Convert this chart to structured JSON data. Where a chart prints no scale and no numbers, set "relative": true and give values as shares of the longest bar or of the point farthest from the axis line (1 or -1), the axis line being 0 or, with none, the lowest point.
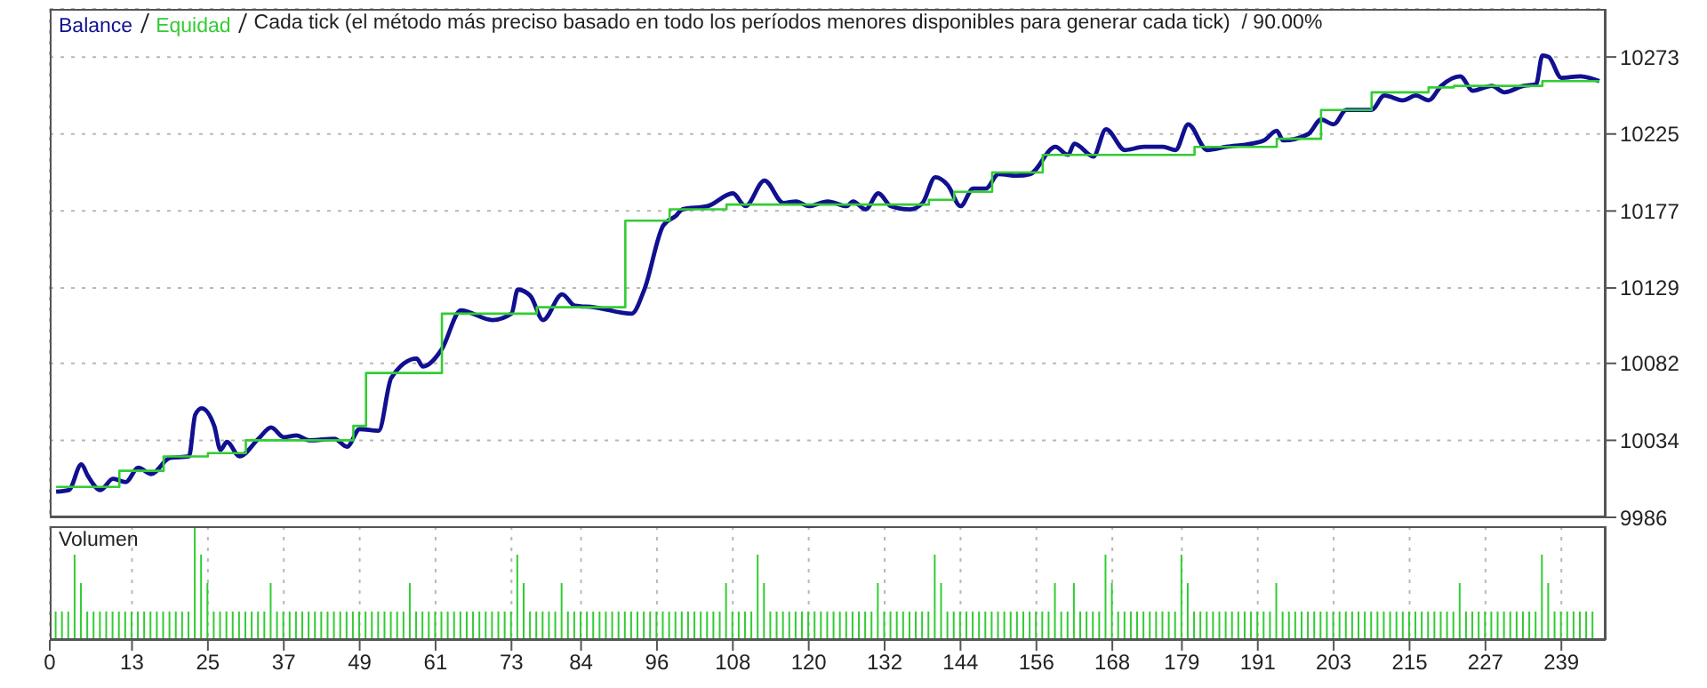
{
  "chart_data": [
    {
      "type": "line",
      "title": "Cada tick (el método más preciso basado en todo los períodos menores disponibles para generar cada tick)  / 90.00%",
      "legend": "top left",
      "grid": true,
      "tick_labels": "y",
      "xlim": [
        0,
        246
      ],
      "xticks": [
        0,
        13,
        25,
        37,
        49,
        61,
        73,
        84,
        96,
        108,
        120,
        132,
        144,
        156,
        168,
        179,
        191,
        203,
        215,
        227,
        239
      ],
      "ylim": [
        9986,
        10303
      ],
      "yticks": [
        9986,
        10034,
        10082,
        10129,
        10177,
        10225,
        10273
      ],
      "series": [
        {
          "name": "Balance",
          "color": "#101090",
          "x": [
            1,
            3,
            5,
            6,
            8,
            10,
            12,
            14,
            16,
            19,
            22,
            23,
            24,
            26,
            27,
            28,
            30,
            33,
            35,
            37,
            39,
            41,
            45,
            47,
            49,
            52,
            54,
            58,
            59,
            62,
            65,
            70,
            73,
            74,
            76,
            78,
            81,
            83,
            86,
            92,
            94,
            97,
            99,
            100,
            104,
            108,
            110,
            113,
            116,
            118,
            120,
            123,
            126,
            127,
            129,
            131,
            133,
            136,
            138,
            140,
            142,
            144,
            146,
            148,
            150,
            153,
            155,
            159,
            161,
            162,
            165,
            167,
            170,
            173,
            176,
            178,
            180,
            183,
            186,
            190,
            192,
            194,
            195,
            199,
            201,
            203,
            205,
            209,
            211,
            214,
            216,
            218,
            220,
            223,
            225,
            228,
            230,
            233,
            235,
            236,
            237,
            239,
            242,
            245
          ],
          "values": [
            10002,
            10003,
            10019,
            10012,
            10003,
            10010,
            10008,
            10017,
            10013,
            10023,
            10024,
            10050,
            10054,
            10043,
            10028,
            10033,
            10024,
            10035,
            10042,
            10036,
            10037,
            10034,
            10035,
            10030,
            10041,
            10040,
            10073,
            10085,
            10080,
            10091,
            10115,
            10109,
            10113,
            10128,
            10124,
            10109,
            10125,
            10118,
            10117,
            10113,
            10128,
            10168,
            10174,
            10178,
            10180,
            10188,
            10180,
            10196,
            10182,
            10183,
            10180,
            10183,
            10180,
            10183,
            10178,
            10188,
            10180,
            10178,
            10182,
            10198,
            10193,
            10180,
            10191,
            10191,
            10200,
            10199,
            10200,
            10217,
            10212,
            10219,
            10211,
            10228,
            10215,
            10217,
            10217,
            10215,
            10231,
            10215,
            10217,
            10219,
            10221,
            10227,
            10221,
            10225,
            10234,
            10231,
            10240,
            10240,
            10249,
            10246,
            10249,
            10246,
            10255,
            10261,
            10252,
            10255,
            10251,
            10255,
            10256,
            10274,
            10273,
            10260,
            10261,
            10258
          ]
        },
        {
          "name": "Equidad",
          "type": "step",
          "color": "#33cc33",
          "x": [
            1,
            11,
            18,
            25,
            31,
            48,
            50,
            62,
            77,
            91,
            98,
            107,
            139,
            143,
            149,
            157,
            181,
            194,
            201,
            209,
            218,
            222,
            236,
            245
          ],
          "values": [
            10005,
            10015,
            10024,
            10026,
            10034,
            10043,
            10076,
            10113,
            10117,
            10171,
            10178,
            10181,
            10184,
            10189,
            10201,
            10212,
            10217,
            10222,
            10240,
            10251,
            10254,
            10255,
            10258,
            10258
          ]
        }
      ]
    },
    {
      "type": "bar",
      "title": "Volumen",
      "relative": true,
      "grid": "x",
      "tick_labels": "x",
      "color": "#33cc33",
      "xlim": [
        0,
        246
      ],
      "xticks": [
        0,
        13,
        25,
        37,
        49,
        61,
        73,
        84,
        96,
        108,
        120,
        132,
        144,
        156,
        168,
        179,
        191,
        203,
        215,
        227,
        239
      ],
      "x": [
        1,
        2,
        3,
        4,
        5,
        6,
        7,
        8,
        9,
        10,
        11,
        12,
        13,
        14,
        15,
        16,
        17,
        18,
        19,
        20,
        21,
        22,
        23,
        24,
        25,
        26,
        27,
        28,
        29,
        30,
        31,
        32,
        33,
        34,
        35,
        36,
        37,
        38,
        39,
        40,
        41,
        42,
        43,
        44,
        45,
        46,
        47,
        48,
        49,
        50,
        51,
        52,
        53,
        54,
        55,
        56,
        57,
        58,
        59,
        60,
        61,
        62,
        63,
        64,
        65,
        66,
        67,
        68,
        69,
        70,
        71,
        72,
        73,
        74,
        75,
        76,
        77,
        78,
        79,
        80,
        81,
        82,
        83,
        84,
        85,
        86,
        87,
        88,
        89,
        90,
        91,
        92,
        93,
        94,
        95,
        96,
        97,
        98,
        99,
        100,
        101,
        102,
        103,
        104,
        105,
        106,
        107,
        108,
        109,
        110,
        111,
        112,
        113,
        114,
        115,
        116,
        117,
        118,
        119,
        120,
        121,
        122,
        123,
        124,
        125,
        126,
        127,
        128,
        129,
        130,
        131,
        132,
        133,
        134,
        135,
        136,
        137,
        138,
        139,
        140,
        141,
        142,
        143,
        144,
        145,
        146,
        147,
        148,
        149,
        150,
        151,
        152,
        153,
        154,
        155,
        156,
        157,
        158,
        159,
        160,
        161,
        162,
        163,
        164,
        165,
        166,
        167,
        168,
        169,
        170,
        171,
        172,
        173,
        174,
        175,
        176,
        177,
        178,
        179,
        180,
        181,
        182,
        183,
        184,
        185,
        186,
        187,
        188,
        189,
        190,
        191,
        192,
        193,
        194,
        195,
        196,
        197,
        198,
        199,
        200,
        201,
        202,
        203,
        204,
        205,
        206,
        207,
        208,
        209,
        210,
        211,
        212,
        213,
        214,
        215,
        216,
        217,
        218,
        219,
        220,
        221,
        222,
        223,
        224,
        225,
        226,
        227,
        228,
        229,
        230,
        231,
        232,
        233,
        234,
        235,
        236,
        237,
        238,
        239,
        240,
        241,
        242,
        243,
        244
      ],
      "values": [
        0.25,
        0.25,
        0.25,
        0.75,
        0.5,
        0.25,
        0.25,
        0.25,
        0.25,
        0.25,
        0.25,
        0.25,
        0.25,
        0.25,
        0.25,
        0.25,
        0.25,
        0.25,
        0.25,
        0.25,
        0.25,
        0.25,
        1,
        0.75,
        0.5,
        0.25,
        0.25,
        0.25,
        0.25,
        0.25,
        0.25,
        0.25,
        0.25,
        0.25,
        0.5,
        0.25,
        0.25,
        0.25,
        0.25,
        0.25,
        0.25,
        0.25,
        0.25,
        0.25,
        0.25,
        0.25,
        0.25,
        0.25,
        0.25,
        0.25,
        0.25,
        0.25,
        0.25,
        0.25,
        0.25,
        0.25,
        0.5,
        0.25,
        0.25,
        0.25,
        0.25,
        0.25,
        0.25,
        0.25,
        0.25,
        0.25,
        0.25,
        0.25,
        0.25,
        0.25,
        0.25,
        0.25,
        0.25,
        0.75,
        0.5,
        0.25,
        0.25,
        0.25,
        0.25,
        0.25,
        0.5,
        0.25,
        0.25,
        0.25,
        0.25,
        0.25,
        0.25,
        0.25,
        0.25,
        0.25,
        0.25,
        0.25,
        0.25,
        0.25,
        0.25,
        0.25,
        0.25,
        0.25,
        0.25,
        0.25,
        0.25,
        0.25,
        0.25,
        0.25,
        0.25,
        0.25,
        0.5,
        0.25,
        0.25,
        0.25,
        0.25,
        0.75,
        0.5,
        0.25,
        0.25,
        0.25,
        0.25,
        0.25,
        0.25,
        0.25,
        0.25,
        0.25,
        0.25,
        0.25,
        0.25,
        0.25,
        0.25,
        0.25,
        0.25,
        0.25,
        0.5,
        0.25,
        0.25,
        0.25,
        0.25,
        0.25,
        0.25,
        0.25,
        0.25,
        0.75,
        0.5,
        0.25,
        0.25,
        0.25,
        0.25,
        0.25,
        0.25,
        0.25,
        0.25,
        0.25,
        0.25,
        0.25,
        0.25,
        0.25,
        0.25,
        0.25,
        0.25,
        0.25,
        0.5,
        0.25,
        0.25,
        0.5,
        0.25,
        0.25,
        0.25,
        0.25,
        0.75,
        0.5,
        0.25,
        0.25,
        0.25,
        0.25,
        0.25,
        0.25,
        0.25,
        0.25,
        0.25,
        0.25,
        0.75,
        0.5,
        0.25,
        0.25,
        0.25,
        0.25,
        0.25,
        0.25,
        0.25,
        0.25,
        0.25,
        0.25,
        0.25,
        0.25,
        0.25,
        0.5,
        0.25,
        0.25,
        0.25,
        0.25,
        0.25,
        0.25,
        0.25,
        0.25,
        0.25,
        0.25,
        0.25,
        0.25,
        0.25,
        0.25,
        0.25,
        0.25,
        0.25,
        0.25,
        0.25,
        0.25,
        0.25,
        0.25,
        0.25,
        0.25,
        0.25,
        0.25,
        0.25,
        0.25,
        0.5,
        0.25,
        0.25,
        0.25,
        0.25,
        0.25,
        0.25,
        0.25,
        0.25,
        0.25,
        0.25,
        0.25,
        0.25,
        0.75,
        0.5,
        0.25,
        0.25,
        0.25,
        0.25,
        0.25,
        0.25,
        0.25
      ]
    }
  ]
}
